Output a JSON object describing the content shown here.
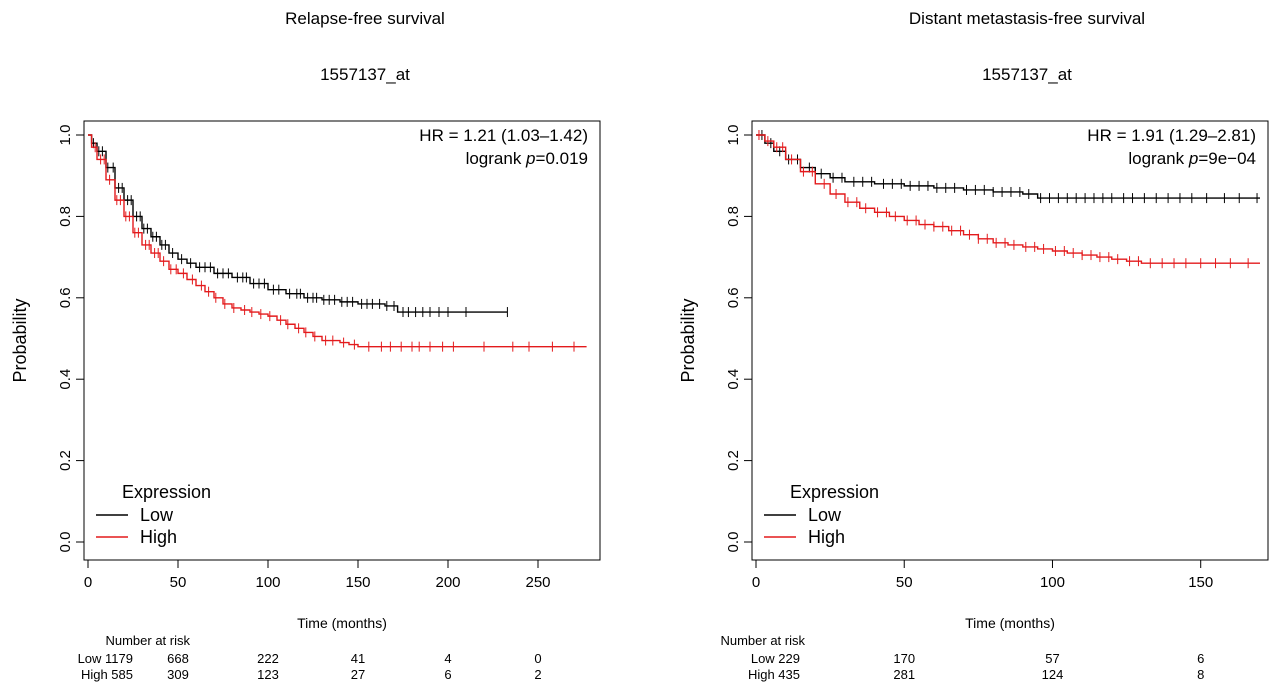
{
  "chart_data": [
    {
      "type": "line",
      "subtype": "kaplan-meier",
      "title": "Relapse-free survival",
      "subtitle": "1557137_at",
      "xlabel": "Time (months)",
      "ylabel": "Probability",
      "xlim": [
        0,
        280
      ],
      "ylim": [
        0,
        1
      ],
      "x_ticks": [
        "0",
        "50",
        "100",
        "150",
        "200",
        "250"
      ],
      "y_ticks": [
        "0.0",
        "0.2",
        "0.4",
        "0.6",
        "0.8",
        "1.0"
      ],
      "hr_text": "HR = 1.21 (1.03–1.42)",
      "logrank_prefix": "logrank ",
      "logrank_p_symbol": "p",
      "logrank_value": "=0.019",
      "legend": {
        "title": "Expression",
        "placement": "bottom-left",
        "entries": [
          {
            "label": "Low",
            "color": "#000000"
          },
          {
            "label": "High",
            "color": "#e31a1c"
          }
        ]
      },
      "series": [
        {
          "name": "Low",
          "color": "#000000",
          "x": [
            0,
            2,
            5,
            10,
            15,
            20,
            25,
            30,
            35,
            40,
            45,
            50,
            55,
            60,
            70,
            80,
            90,
            100,
            110,
            120,
            130,
            140,
            150,
            160,
            165,
            170,
            172,
            233
          ],
          "y": [
            1.0,
            0.98,
            0.96,
            0.92,
            0.87,
            0.84,
            0.8,
            0.77,
            0.75,
            0.73,
            0.71,
            0.695,
            0.685,
            0.675,
            0.66,
            0.65,
            0.635,
            0.62,
            0.61,
            0.6,
            0.595,
            0.59,
            0.585,
            0.585,
            0.58,
            0.58,
            0.565,
            0.565
          ],
          "censor_x": [
            3,
            6,
            8,
            11,
            14,
            17,
            19,
            22,
            24,
            27,
            29,
            31,
            33,
            36,
            38,
            41,
            43,
            47,
            52,
            57,
            62,
            65,
            68,
            72,
            75,
            78,
            83,
            86,
            88,
            92,
            95,
            98,
            103,
            106,
            112,
            116,
            118,
            122,
            125,
            127,
            131,
            134,
            137,
            141,
            144,
            147,
            152,
            155,
            158,
            162,
            166,
            170,
            175,
            178,
            182,
            186,
            190,
            195,
            200,
            210,
            233
          ]
        },
        {
          "name": "High",
          "color": "#e31a1c",
          "x": [
            0,
            2,
            5,
            10,
            15,
            20,
            25,
            30,
            35,
            40,
            45,
            50,
            55,
            60,
            65,
            70,
            75,
            80,
            85,
            90,
            95,
            100,
            105,
            110,
            115,
            120,
            125,
            130,
            140,
            145,
            150,
            277
          ],
          "y": [
            1.0,
            0.97,
            0.94,
            0.89,
            0.84,
            0.8,
            0.76,
            0.73,
            0.71,
            0.69,
            0.67,
            0.66,
            0.645,
            0.63,
            0.615,
            0.6,
            0.585,
            0.575,
            0.57,
            0.565,
            0.56,
            0.555,
            0.545,
            0.535,
            0.525,
            0.515,
            0.505,
            0.495,
            0.49,
            0.485,
            0.48,
            0.48
          ],
          "censor_x": [
            4,
            7,
            9,
            12,
            16,
            18,
            21,
            23,
            26,
            28,
            32,
            34,
            37,
            39,
            42,
            46,
            49,
            53,
            58,
            63,
            67,
            71,
            76,
            81,
            87,
            91,
            96,
            101,
            107,
            111,
            117,
            121,
            126,
            132,
            136,
            142,
            148,
            156,
            163,
            168,
            174,
            180,
            184,
            190,
            197,
            203,
            220,
            236,
            245,
            258,
            270
          ]
        }
      ],
      "risk_table": {
        "header": "Number at risk",
        "rows": [
          {
            "label": "Low 1179",
            "values": [
              "668",
              "222",
              "41",
              "4",
              "0"
            ]
          },
          {
            "label": "High 585",
            "values": [
              "309",
              "123",
              "27",
              "6",
              "2"
            ]
          }
        ],
        "positions": [
          50,
          100,
          150,
          200,
          250
        ]
      }
    },
    {
      "type": "line",
      "subtype": "kaplan-meier",
      "title": "Distant metastasis-free survival",
      "subtitle": "1557137_at",
      "xlabel": "Time (months)",
      "ylabel": "Probability",
      "xlim": [
        0,
        170
      ],
      "ylim": [
        0,
        1
      ],
      "x_ticks": [
        "0",
        "50",
        "100",
        "150"
      ],
      "y_ticks": [
        "0.0",
        "0.2",
        "0.4",
        "0.6",
        "0.8",
        "1.0"
      ],
      "hr_text": "HR = 1.91 (1.29–2.81)",
      "logrank_prefix": "logrank ",
      "logrank_p_symbol": "p",
      "logrank_value": "=9e−04",
      "legend": {
        "title": "Expression",
        "placement": "bottom-left",
        "entries": [
          {
            "label": "Low",
            "color": "#000000"
          },
          {
            "label": "High",
            "color": "#e31a1c"
          }
        ]
      },
      "series": [
        {
          "name": "Low",
          "color": "#000000",
          "x": [
            0,
            3,
            6,
            10,
            15,
            20,
            25,
            30,
            40,
            50,
            60,
            70,
            80,
            90,
            95,
            100,
            120,
            140,
            170
          ],
          "y": [
            1.0,
            0.98,
            0.96,
            0.94,
            0.92,
            0.905,
            0.895,
            0.885,
            0.88,
            0.875,
            0.87,
            0.865,
            0.86,
            0.855,
            0.845,
            0.845,
            0.845,
            0.845,
            0.845
          ],
          "censor_x": [
            2,
            5,
            8,
            11,
            14,
            18,
            22,
            26,
            29,
            33,
            36,
            39,
            43,
            46,
            49,
            52,
            55,
            58,
            61,
            64,
            67,
            71,
            74,
            77,
            80,
            83,
            86,
            89,
            92,
            96,
            99,
            102,
            105,
            108,
            111,
            114,
            117,
            120,
            124,
            127,
            131,
            135,
            139,
            143,
            147,
            152,
            158,
            163,
            169
          ]
        },
        {
          "name": "High",
          "color": "#e31a1c",
          "x": [
            0,
            3,
            6,
            10,
            15,
            20,
            25,
            30,
            35,
            40,
            45,
            50,
            55,
            60,
            65,
            70,
            75,
            80,
            85,
            90,
            95,
            100,
            105,
            110,
            115,
            120,
            125,
            130,
            140,
            150,
            170
          ],
          "y": [
            1.0,
            0.985,
            0.97,
            0.94,
            0.91,
            0.88,
            0.855,
            0.835,
            0.82,
            0.81,
            0.8,
            0.79,
            0.78,
            0.775,
            0.765,
            0.755,
            0.745,
            0.735,
            0.73,
            0.725,
            0.72,
            0.715,
            0.71,
            0.705,
            0.7,
            0.695,
            0.69,
            0.685,
            0.685,
            0.685,
            0.685
          ],
          "censor_x": [
            1,
            4,
            7,
            9,
            12,
            16,
            19,
            23,
            27,
            31,
            34,
            37,
            41,
            44,
            47,
            51,
            54,
            57,
            60,
            63,
            66,
            69,
            72,
            75,
            78,
            81,
            84,
            87,
            91,
            94,
            97,
            101,
            104,
            107,
            110,
            113,
            116,
            119,
            122,
            126,
            129,
            133,
            137,
            141,
            145,
            150,
            155,
            160,
            166
          ]
        }
      ],
      "risk_table": {
        "header": "Number at risk",
        "rows": [
          {
            "label": "Low 229",
            "values": [
              "170",
              "57",
              "6"
            ]
          },
          {
            "label": "High 435",
            "values": [
              "281",
              "124",
              "8"
            ]
          }
        ],
        "positions": [
          50,
          100,
          150
        ]
      }
    }
  ]
}
